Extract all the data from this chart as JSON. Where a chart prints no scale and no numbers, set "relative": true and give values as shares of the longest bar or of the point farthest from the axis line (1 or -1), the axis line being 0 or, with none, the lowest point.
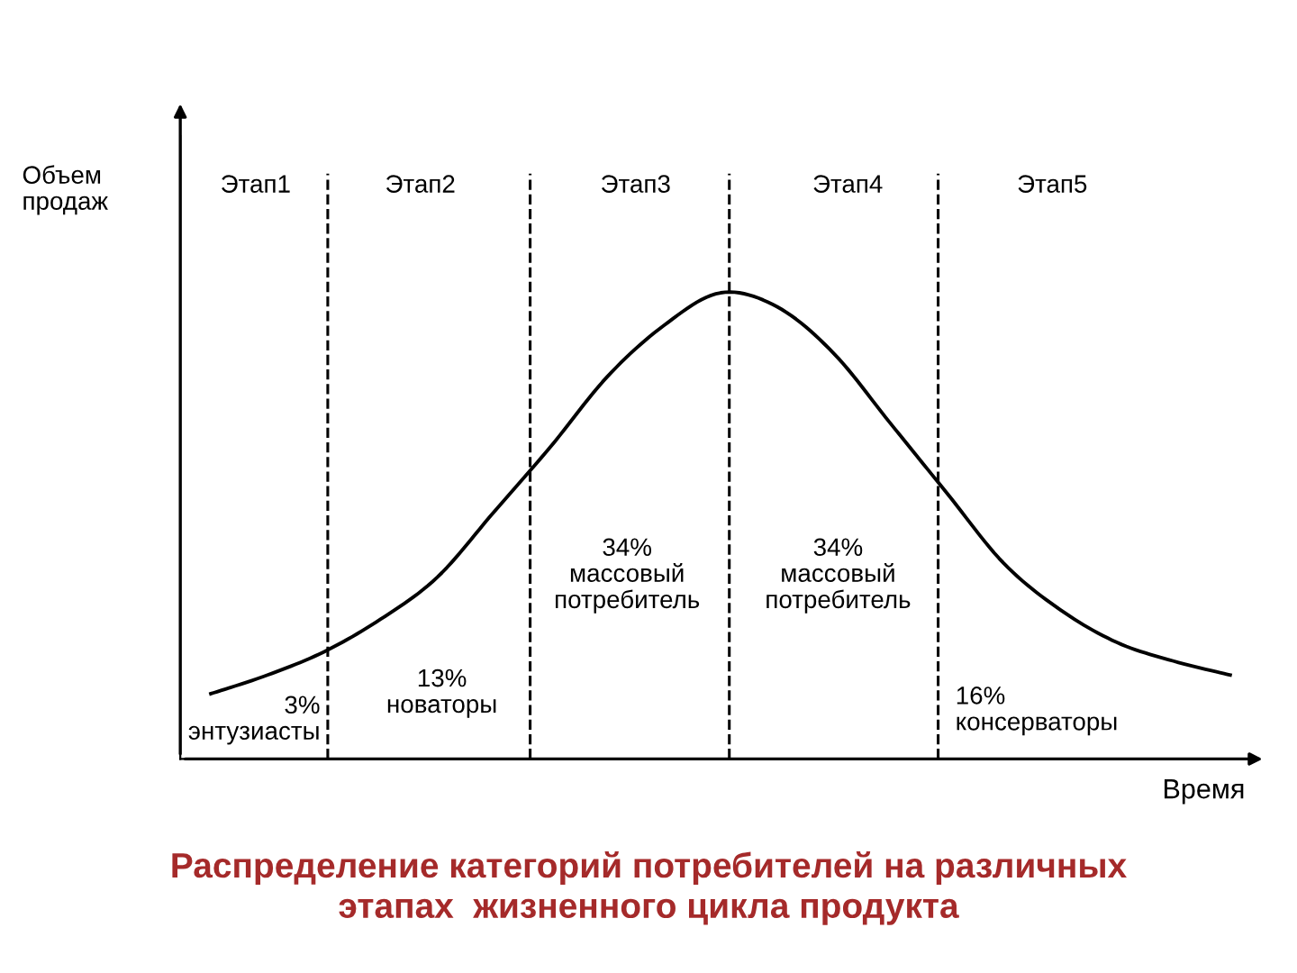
{
  "chart_data": {
    "type": "line",
    "relative": true,
    "title": "Распределение категорий потребителей на различных\nэтапах  жизненного цикла продукта",
    "xlabel": "Время",
    "categories": [
      null,
      null,
      null,
      null,
      null,
      null,
      null,
      null,
      null,
      null,
      null,
      null,
      null,
      null,
      null,
      null,
      null,
      null,
      null
    ],
    "series": [
      {
        "color": "#000000",
        "values": [
          0.14,
          0.18,
          0.23,
          0.3,
          0.39,
          0.53,
          0.67,
          0.82,
          0.93,
          1.0,
          0.97,
          0.87,
          0.72,
          0.57,
          0.42,
          0.32,
          0.25,
          0.21,
          0.18
        ]
      }
    ],
    "annotations": [
      "Объем\nпродаж",
      "Этап1",
      "Этап2",
      "Этап3",
      "Этап4",
      "Этап5",
      "3%\nэнтузиасты",
      "13%\nноваторы",
      "34%\nмассовый\nпотребитель",
      "34%\nмассовый\nпотребитель",
      "16%\nконсерваторы"
    ],
    "grid": false,
    "legend": false,
    "marker": "none",
    "line_style": "solid"
  }
}
